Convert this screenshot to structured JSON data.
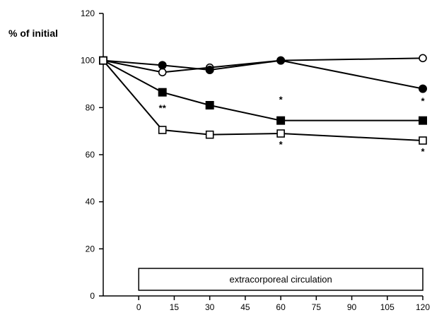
{
  "chart_data": {
    "type": "line",
    "ylabel": "% of initial",
    "xlabel": "",
    "xlim": [
      -15,
      120
    ],
    "ylim": [
      0,
      120
    ],
    "x_ticks": [
      0,
      15,
      30,
      45,
      60,
      75,
      90,
      105,
      120
    ],
    "y_ticks": [
      0,
      20,
      40,
      60,
      80,
      100,
      120
    ],
    "grid": false,
    "legend": "none",
    "series": [
      {
        "marker": "open-circle",
        "x": [
          -15,
          10,
          30,
          60,
          120
        ],
        "y": [
          100,
          95,
          97,
          100,
          101
        ]
      },
      {
        "marker": "filled-circle",
        "x": [
          -15,
          10,
          30,
          60,
          120
        ],
        "y": [
          100,
          98,
          96,
          100,
          88
        ]
      },
      {
        "marker": "filled-square",
        "x": [
          -15,
          10,
          30,
          60,
          120
        ],
        "y": [
          100,
          86.5,
          81,
          74.5,
          74.5
        ]
      },
      {
        "marker": "open-square",
        "x": [
          -15,
          10,
          30,
          60,
          120
        ],
        "y": [
          100,
          70.5,
          68.5,
          69,
          66
        ]
      }
    ],
    "annotations": [
      {
        "text": "**",
        "x": 10,
        "y": 78.5
      },
      {
        "text": "*",
        "x": 60,
        "y": 82
      },
      {
        "text": "*",
        "x": 60,
        "y": 63
      },
      {
        "text": "*",
        "x": 120,
        "y": 81.5
      },
      {
        "text": "*",
        "x": 120,
        "y": 60
      }
    ],
    "bar_label": {
      "text": "extracorporeal circulation",
      "x_start": 0,
      "x_end": 120
    }
  }
}
